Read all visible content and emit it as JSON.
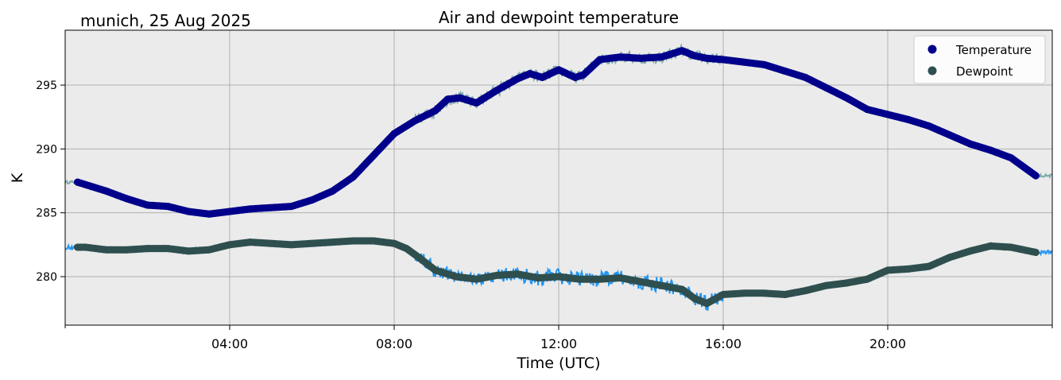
{
  "chart_data": {
    "type": "line",
    "title": "Air and dewpoint temperature",
    "subtitle": "munich, 25 Aug 2025",
    "xlabel": "Time (UTC)",
    "ylabel": "K",
    "xlim": [
      0,
      24
    ],
    "ylim": [
      276.2,
      299.3
    ],
    "grid": true,
    "legend_position": "top-right",
    "x_ticks": [
      {
        "value": 4,
        "label": "04:00"
      },
      {
        "value": 8,
        "label": "08:00"
      },
      {
        "value": 12,
        "label": "12:00"
      },
      {
        "value": 16,
        "label": "16:00"
      },
      {
        "value": 20,
        "label": "20:00"
      }
    ],
    "x_minor_ticks": [
      0,
      24
    ],
    "y_ticks": [
      {
        "value": 280,
        "label": "280"
      },
      {
        "value": 285,
        "label": "285"
      },
      {
        "value": 290,
        "label": "290"
      },
      {
        "value": 295,
        "label": "295"
      }
    ],
    "series": [
      {
        "name": "Temperature",
        "color": "#00008b",
        "raw_color": "#7eaaaa",
        "noise": 0.45,
        "x": [
          0.3,
          0.5,
          1.0,
          1.5,
          2.0,
          2.5,
          3.0,
          3.5,
          4.0,
          4.5,
          5.0,
          5.5,
          6.0,
          6.5,
          7.0,
          7.5,
          8.0,
          8.5,
          9.0,
          9.3,
          9.6,
          10.0,
          10.5,
          11.0,
          11.3,
          11.6,
          12.0,
          12.4,
          12.6,
          13.0,
          13.5,
          14.0,
          14.5,
          15.0,
          15.3,
          15.6,
          16.0,
          16.5,
          17.0,
          17.5,
          18.0,
          18.5,
          19.0,
          19.5,
          20.0,
          20.5,
          21.0,
          21.5,
          22.0,
          22.5,
          23.0,
          23.6
        ],
        "values": [
          287.4,
          287.2,
          286.7,
          286.1,
          285.6,
          285.5,
          285.1,
          284.9,
          285.1,
          285.3,
          285.4,
          285.5,
          286.0,
          286.7,
          287.8,
          289.5,
          291.2,
          292.2,
          293.0,
          293.9,
          294.0,
          293.6,
          294.6,
          295.5,
          295.9,
          295.6,
          296.2,
          295.6,
          295.8,
          297.0,
          297.2,
          297.1,
          297.2,
          297.7,
          297.3,
          297.1,
          297.0,
          296.8,
          296.6,
          296.1,
          295.6,
          294.8,
          294.0,
          293.1,
          292.7,
          292.3,
          291.8,
          291.1,
          290.4,
          289.9,
          289.3,
          287.9
        ]
      },
      {
        "name": "Dewpoint",
        "color": "#2f4f4f",
        "raw_color": "#2196f3",
        "noise": 0.6,
        "x": [
          0.3,
          0.5,
          1.0,
          1.5,
          2.0,
          2.5,
          3.0,
          3.5,
          4.0,
          4.5,
          5.0,
          5.5,
          6.0,
          6.5,
          7.0,
          7.5,
          8.0,
          8.3,
          8.6,
          9.0,
          9.5,
          10.0,
          10.5,
          11.0,
          11.5,
          12.0,
          12.5,
          13.0,
          13.5,
          14.0,
          14.5,
          15.0,
          15.3,
          15.6,
          16.0,
          16.5,
          17.0,
          17.5,
          18.0,
          18.5,
          19.0,
          19.5,
          20.0,
          20.5,
          21.0,
          21.5,
          22.0,
          22.5,
          23.0,
          23.6
        ],
        "values": [
          282.3,
          282.3,
          282.1,
          282.1,
          282.2,
          282.2,
          282.0,
          282.1,
          282.5,
          282.7,
          282.6,
          282.5,
          282.6,
          282.7,
          282.8,
          282.8,
          282.6,
          282.2,
          281.5,
          280.5,
          280.0,
          279.8,
          280.1,
          280.2,
          279.9,
          280.0,
          279.8,
          279.8,
          279.9,
          279.6,
          279.3,
          279.0,
          278.3,
          277.9,
          278.6,
          278.7,
          278.7,
          278.6,
          278.9,
          279.3,
          279.5,
          279.8,
          280.5,
          280.6,
          280.8,
          281.5,
          282.0,
          282.4,
          282.3,
          281.9
        ]
      }
    ]
  }
}
